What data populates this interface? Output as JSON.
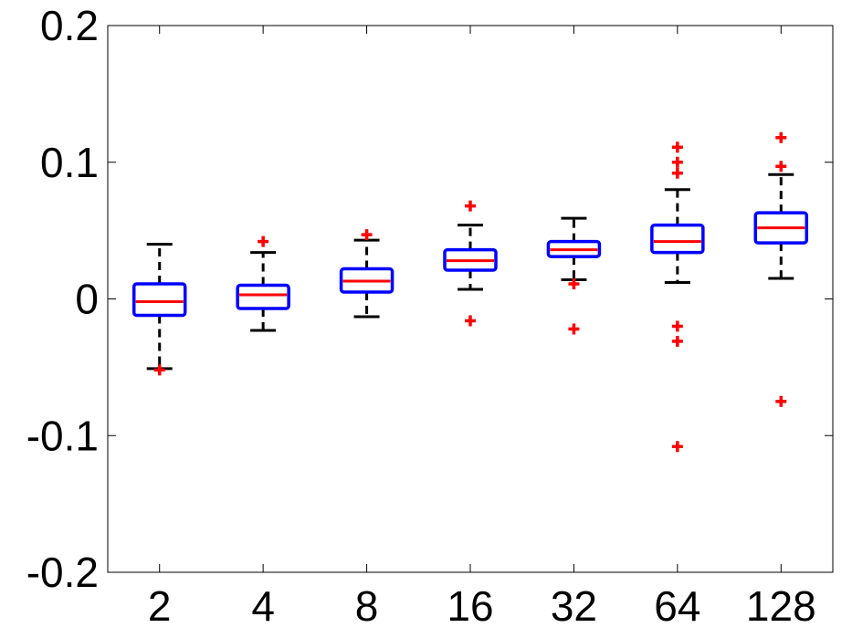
{
  "chart_data": {
    "type": "boxplot",
    "categories": [
      "2",
      "4",
      "8",
      "16",
      "32",
      "64",
      "128"
    ],
    "ylim": [
      -0.2,
      0.2
    ],
    "yticks": [
      -0.2,
      -0.1,
      0,
      0.1,
      0.2
    ],
    "ytick_labels": [
      "-0.2",
      "-0.1",
      "0",
      "0.1",
      "0.2"
    ],
    "grid": false,
    "colors": {
      "box": "#0000ff",
      "median": "#ff0000",
      "whisker": "#000000",
      "outlier": "#ff0000",
      "axes": "#000000"
    },
    "boxes": [
      {
        "label": "2",
        "whisker_low": -0.051,
        "q1": -0.012,
        "median": -0.002,
        "q3": 0.011,
        "whisker_high": 0.04,
        "outliers": [
          -0.052
        ]
      },
      {
        "label": "4",
        "whisker_low": -0.023,
        "q1": -0.007,
        "median": 0.003,
        "q3": 0.01,
        "whisker_high": 0.034,
        "outliers": [
          0.042
        ]
      },
      {
        "label": "8",
        "whisker_low": -0.013,
        "q1": 0.005,
        "median": 0.013,
        "q3": 0.022,
        "whisker_high": 0.043,
        "outliers": [
          0.047
        ]
      },
      {
        "label": "16",
        "whisker_low": 0.007,
        "q1": 0.021,
        "median": 0.028,
        "q3": 0.036,
        "whisker_high": 0.054,
        "outliers": [
          0.068,
          -0.016
        ]
      },
      {
        "label": "32",
        "whisker_low": 0.014,
        "q1": 0.031,
        "median": 0.036,
        "q3": 0.042,
        "whisker_high": 0.059,
        "outliers": [
          0.011,
          -0.022
        ]
      },
      {
        "label": "64",
        "whisker_low": 0.012,
        "q1": 0.034,
        "median": 0.042,
        "q3": 0.054,
        "whisker_high": 0.08,
        "outliers": [
          0.111,
          0.1,
          0.092,
          -0.02,
          -0.031,
          -0.108
        ]
      },
      {
        "label": "128",
        "whisker_low": 0.015,
        "q1": 0.041,
        "median": 0.052,
        "q3": 0.063,
        "whisker_high": 0.091,
        "outliers": [
          0.118,
          0.097,
          -0.075
        ]
      }
    ]
  }
}
